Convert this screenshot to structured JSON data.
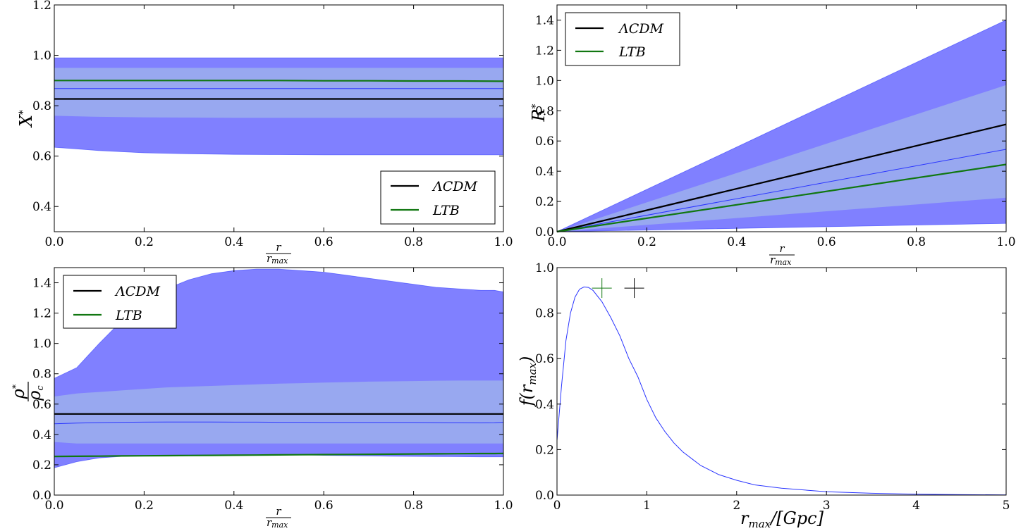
{
  "colors": {
    "outer": "#8080ff",
    "inner": "#98a8f0",
    "mean": "#2a35ff",
    "lcdm": "#000000",
    "ltb": "#117711"
  },
  "chart_data": [
    {
      "id": "p1",
      "type": "area",
      "title": "",
      "ylabel": {
        "main": "X",
        "sup": "*"
      },
      "xlabel": {
        "num": "r",
        "den_base": "r",
        "den_sub": "max"
      },
      "xlim": [
        0,
        1
      ],
      "ylim": [
        0.3,
        1.2
      ],
      "xticks": [
        "0.0",
        "0.2",
        "0.4",
        "0.6",
        "0.8",
        "1.0"
      ],
      "yticks": [
        "0.4",
        "0.6",
        "0.8",
        "1.0",
        "1.2"
      ],
      "x": [
        0,
        0.1,
        0.2,
        0.3,
        0.4,
        0.5,
        0.6,
        0.7,
        0.8,
        0.9,
        1.0
      ],
      "outer_upper": [
        0.99,
        0.99,
        0.99,
        0.99,
        0.99,
        0.99,
        0.99,
        0.99,
        0.99,
        0.99,
        0.99
      ],
      "outer_lower": [
        0.635,
        0.622,
        0.613,
        0.609,
        0.607,
        0.606,
        0.605,
        0.605,
        0.605,
        0.605,
        0.605
      ],
      "inner_upper": [
        0.95,
        0.95,
        0.95,
        0.95,
        0.95,
        0.95,
        0.95,
        0.95,
        0.95,
        0.95,
        0.95
      ],
      "inner_lower": [
        0.76,
        0.756,
        0.754,
        0.753,
        0.752,
        0.752,
        0.752,
        0.752,
        0.752,
        0.752,
        0.752
      ],
      "mean": [
        0.868,
        0.868,
        0.868,
        0.868,
        0.868,
        0.868,
        0.868,
        0.868,
        0.868,
        0.868,
        0.868
      ],
      "series": [
        {
          "name": "ΛCDM",
          "values": [
            0.827,
            0.827,
            0.827,
            0.827,
            0.827,
            0.827,
            0.827,
            0.827,
            0.827,
            0.827,
            0.827
          ]
        },
        {
          "name": "LTB",
          "values": [
            0.9,
            0.9,
            0.9,
            0.9,
            0.9,
            0.9,
            0.899,
            0.899,
            0.898,
            0.898,
            0.897
          ]
        }
      ],
      "legend": {
        "placement": "bottom-right",
        "entries": [
          "ΛCDM",
          "LTB"
        ]
      }
    },
    {
      "id": "p2",
      "type": "area",
      "title": "",
      "ylabel": {
        "main": "R",
        "sup": "*"
      },
      "xlabel": {
        "num": "r",
        "den_base": "r",
        "den_sub": "max"
      },
      "xlim": [
        0,
        1
      ],
      "ylim": [
        0,
        1.5
      ],
      "xticks": [
        "0.0",
        "0.2",
        "0.4",
        "0.6",
        "0.8",
        "1.0"
      ],
      "yticks": [
        "0.0",
        "0.2",
        "0.4",
        "0.6",
        "0.8",
        "1.0",
        "1.2",
        "1.4"
      ],
      "x": [
        0,
        1
      ],
      "outer_upper": [
        0,
        1.4
      ],
      "outer_lower": [
        0,
        0.055
      ],
      "inner_upper": [
        0,
        0.97
      ],
      "inner_lower": [
        0,
        0.225
      ],
      "mean": [
        0,
        0.545
      ],
      "series": [
        {
          "name": "ΛCDM",
          "values": [
            0,
            0.71
          ]
        },
        {
          "name": "LTB",
          "values": [
            0,
            0.445
          ]
        }
      ],
      "legend": {
        "placement": "top-left",
        "entries": [
          "ΛCDM",
          "LTB"
        ]
      }
    },
    {
      "id": "p3",
      "type": "area",
      "title": "",
      "ylabel": {
        "num": "ρ",
        "num_sup": "*",
        "den": "ρ",
        "den_sub": "c"
      },
      "xlabel": {
        "num": "r",
        "den_base": "r",
        "den_sub": "max"
      },
      "xlim": [
        0,
        1
      ],
      "ylim": [
        0,
        1.5
      ],
      "xticks": [
        "0.0",
        "0.2",
        "0.4",
        "0.6",
        "0.8",
        "1.0"
      ],
      "yticks": [
        "0.0",
        "0.2",
        "0.4",
        "0.6",
        "0.8",
        "1.0",
        "1.2",
        "1.4"
      ],
      "x": [
        0,
        0.05,
        0.1,
        0.15,
        0.2,
        0.25,
        0.3,
        0.35,
        0.4,
        0.45,
        0.5,
        0.55,
        0.6,
        0.65,
        0.7,
        0.75,
        0.8,
        0.85,
        0.9,
        0.95,
        0.98,
        1.0
      ],
      "outer_upper": [
        0.77,
        0.84,
        1.0,
        1.15,
        1.27,
        1.36,
        1.42,
        1.46,
        1.48,
        1.49,
        1.49,
        1.48,
        1.47,
        1.45,
        1.43,
        1.41,
        1.39,
        1.37,
        1.36,
        1.35,
        1.35,
        1.34
      ],
      "outer_lower": [
        0.18,
        0.22,
        0.245,
        0.255,
        0.26,
        0.262,
        0.264,
        0.265,
        0.265,
        0.265,
        0.265,
        0.265,
        0.262,
        0.26,
        0.258,
        0.256,
        0.255,
        0.254,
        0.253,
        0.252,
        0.252,
        0.252
      ],
      "inner_upper": [
        0.65,
        0.67,
        0.68,
        0.69,
        0.7,
        0.71,
        0.715,
        0.72,
        0.725,
        0.73,
        0.735,
        0.738,
        0.742,
        0.745,
        0.748,
        0.75,
        0.752,
        0.754,
        0.755,
        0.755,
        0.755,
        0.755
      ],
      "inner_lower": [
        0.35,
        0.34,
        0.34,
        0.34,
        0.34,
        0.34,
        0.34,
        0.34,
        0.34,
        0.34,
        0.34,
        0.34,
        0.34,
        0.34,
        0.34,
        0.34,
        0.34,
        0.34,
        0.34,
        0.34,
        0.34,
        0.34
      ],
      "mean": [
        0.47,
        0.475,
        0.478,
        0.48,
        0.481,
        0.482,
        0.482,
        0.482,
        0.481,
        0.481,
        0.48,
        0.48,
        0.479,
        0.479,
        0.479,
        0.479,
        0.479,
        0.478,
        0.477,
        0.476,
        0.477,
        0.48
      ],
      "series": [
        {
          "name": "ΛCDM",
          "values": [
            0.535,
            0.535,
            0.535,
            0.535,
            0.535,
            0.535,
            0.535,
            0.535,
            0.535,
            0.535,
            0.535,
            0.535,
            0.535,
            0.535,
            0.535,
            0.535,
            0.535,
            0.535,
            0.535,
            0.535,
            0.535,
            0.535
          ]
        },
        {
          "name": "LTB",
          "values": [
            0.255,
            0.256,
            0.257,
            0.258,
            0.259,
            0.26,
            0.261,
            0.262,
            0.263,
            0.264,
            0.265,
            0.266,
            0.267,
            0.268,
            0.269,
            0.27,
            0.271,
            0.272,
            0.273,
            0.274,
            0.274,
            0.275
          ]
        }
      ],
      "legend": {
        "placement": "top-left",
        "entries": [
          "ΛCDM",
          "LTB"
        ]
      }
    },
    {
      "id": "p4",
      "type": "line",
      "title": "",
      "ylabel": {
        "text": "f(r",
        "sub": "max",
        "close": ")"
      },
      "xlabel": {
        "text": "r",
        "sub": "max",
        "rest": "/[Gpc]"
      },
      "xlim": [
        0,
        5
      ],
      "ylim": [
        0,
        1
      ],
      "xticks": [
        "0",
        "1",
        "2",
        "3",
        "4",
        "5"
      ],
      "yticks": [
        "0.0",
        "0.2",
        "0.4",
        "0.6",
        "0.8",
        "1.0"
      ],
      "x": [
        0,
        0.05,
        0.1,
        0.15,
        0.2,
        0.25,
        0.3,
        0.35,
        0.4,
        0.5,
        0.6,
        0.7,
        0.8,
        0.9,
        1.0,
        1.1,
        1.2,
        1.3,
        1.4,
        1.5,
        1.6,
        1.8,
        2.0,
        2.2,
        2.5,
        3.0,
        3.5,
        4.0,
        4.5,
        5.0
      ],
      "y": [
        0.24,
        0.48,
        0.68,
        0.8,
        0.87,
        0.905,
        0.915,
        0.913,
        0.9,
        0.85,
        0.78,
        0.7,
        0.6,
        0.52,
        0.42,
        0.34,
        0.28,
        0.23,
        0.19,
        0.16,
        0.13,
        0.09,
        0.065,
        0.045,
        0.03,
        0.015,
        0.008,
        0.004,
        0.002,
        0.001
      ],
      "markers": [
        {
          "name": "LTB",
          "x": 0.5,
          "y": 0.91
        },
        {
          "name": "ΛCDM",
          "x": 0.86,
          "y": 0.91
        }
      ]
    }
  ]
}
